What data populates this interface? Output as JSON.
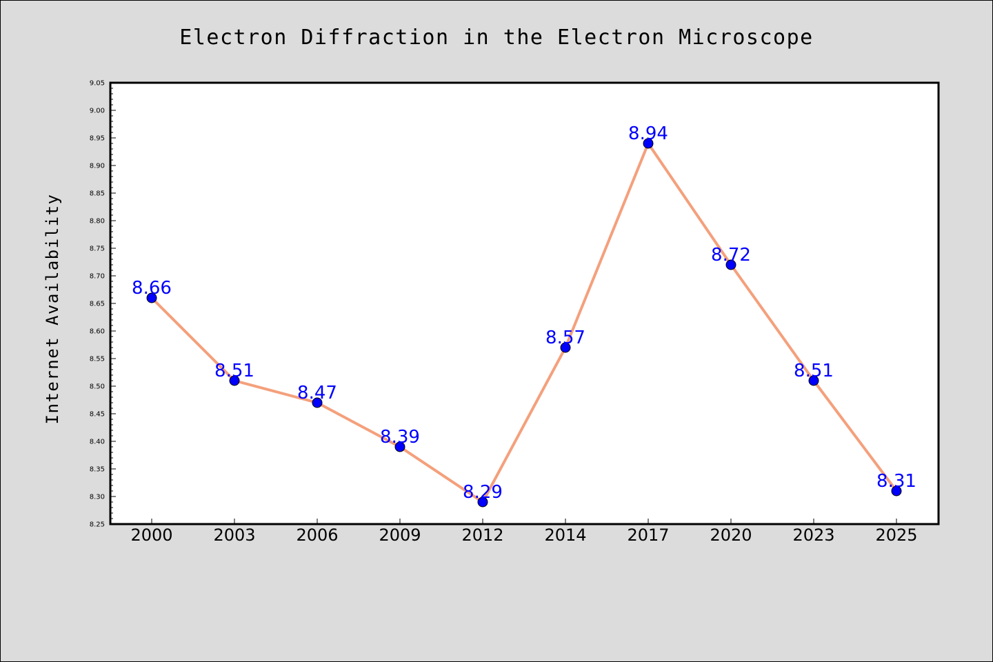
{
  "chart_data": {
    "type": "line",
    "title": "Electron Diffraction in the Electron Microscope",
    "xlabel": "",
    "ylabel": "Internet Availability",
    "categories": [
      "2000",
      "2003",
      "2006",
      "2009",
      "2012",
      "2014",
      "2017",
      "2020",
      "2023",
      "2025"
    ],
    "series": [
      {
        "values": [
          8.66,
          8.51,
          8.47,
          8.39,
          8.29,
          8.57,
          8.94,
          8.72,
          8.51,
          8.31
        ],
        "data_labels": [
          "8.66",
          "8.51",
          "8.47",
          "8.39",
          "8.29",
          "8.57",
          "8.94",
          "8.72",
          "8.51",
          "8.31"
        ],
        "line_color": "#f4a07c",
        "marker_color": "#0000ff"
      }
    ],
    "ylim": [
      8.25,
      9.05
    ],
    "yticks": [
      "8.25",
      "8.30",
      "8.35",
      "8.40",
      "8.45",
      "8.50",
      "8.55",
      "8.60",
      "8.65",
      "8.70",
      "8.75",
      "8.80",
      "8.85",
      "8.90",
      "8.95",
      "9.00",
      "9.05"
    ],
    "grid": false,
    "legend": "none",
    "colors": {
      "figure_background": "#dcdcdc",
      "plot_background": "#ffffff",
      "data_label": "#0000ff"
    }
  }
}
